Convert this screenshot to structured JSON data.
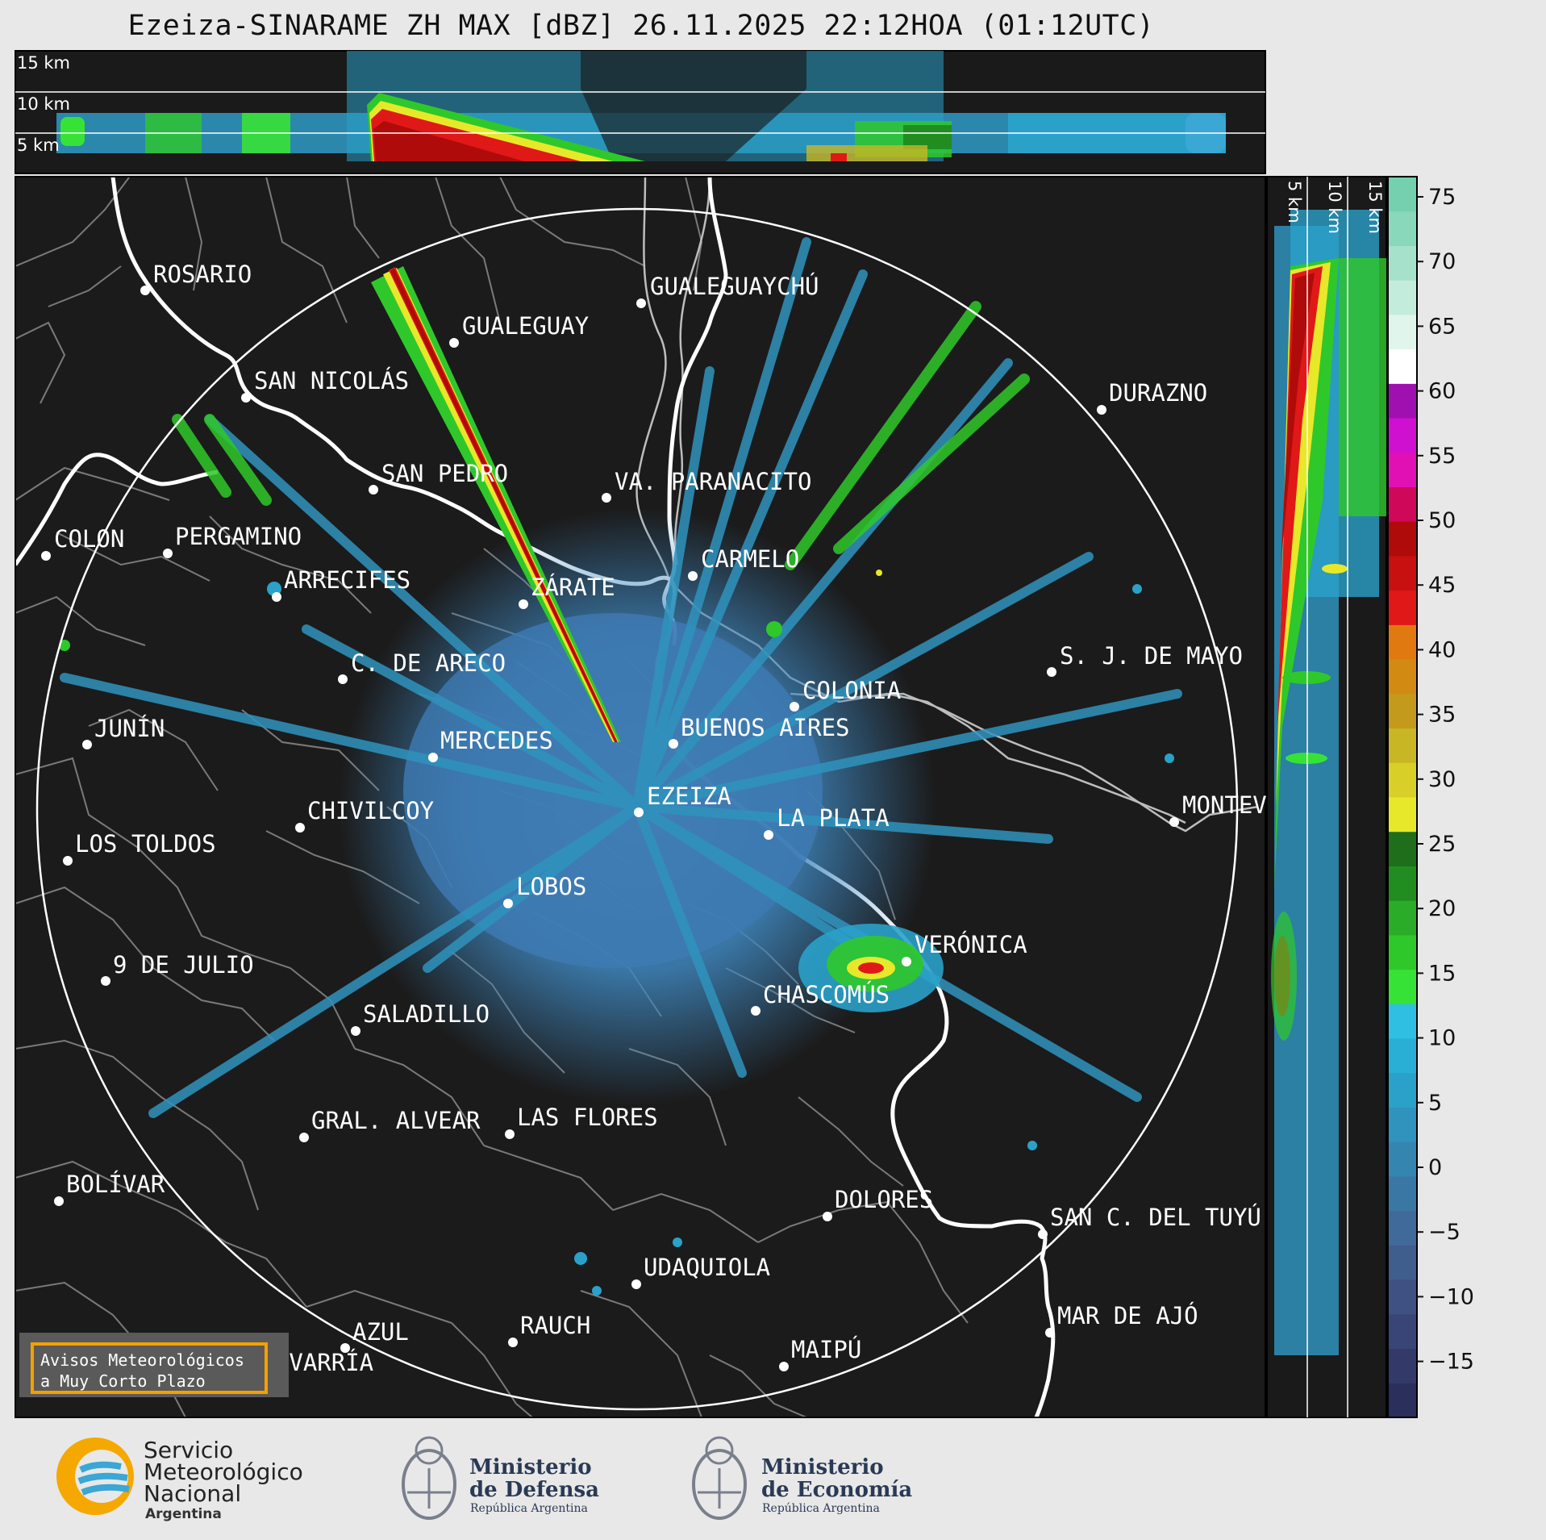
{
  "title": "Ezeiza-SINARAME ZH MAX [dBZ] 26.11.2025 22:12HOA (01:12UTC)",
  "top_panel": {
    "height_labels": [
      "15 km",
      "10 km",
      "5 km"
    ]
  },
  "side_panel": {
    "height_labels": [
      "5 km",
      "10 km",
      "15 km"
    ]
  },
  "colorbar": {
    "ticks": [
      "75",
      "70",
      "65",
      "60",
      "55",
      "50",
      "45",
      "40",
      "35",
      "30",
      "25",
      "20",
      "15",
      "10",
      "5",
      "0",
      "−5",
      "−10",
      "−15"
    ],
    "colors": [
      "#2b2f5c",
      "#333a6a",
      "#3a4577",
      "#3e5182",
      "#3f5d8d",
      "#3f6a99",
      "#3b77a5",
      "#3585b1",
      "#2f93bd",
      "#2aa1c9",
      "#29afd6",
      "#2ebfe3",
      "#37e236",
      "#2fc82a",
      "#2aac28",
      "#218d21",
      "#1f6e1c",
      "#e8e82a",
      "#d8d028",
      "#c9b624",
      "#c39a1c",
      "#d38a12",
      "#e07a10",
      "#e01818",
      "#c81010",
      "#b00b0b",
      "#d0085a",
      "#e010b4",
      "#d010d0",
      "#a010b0",
      "#ffffff",
      "#e0f5ec",
      "#c4ecdc",
      "#a6e2cb",
      "#8ad8bb",
      "#74d0ae"
    ]
  },
  "map": {
    "radar_site": "EZEIZA",
    "cities": [
      "ROSARIO",
      "GUALEGUAYCHÚ",
      "GUALEGUAY",
      "SAN NICOLÁS",
      "DURAZNO",
      "SAN PEDRO",
      "VA. PARANACITO",
      "COLON",
      "PERGAMINO",
      "CARMELO",
      "ARRECIFES",
      "ZÁRATE",
      "S. J. DE MAYO",
      "C. DE ARECO",
      "COLONIA",
      "JUNÍN",
      "MERCEDES",
      "BUENOS AIRES",
      "EZEIZA",
      "MONTEV",
      "CHIVILCOY",
      "LA PLATA",
      "LOS TOLDOS",
      "LOBOS",
      "VERÓNICA",
      "9 DE JULIO",
      "CHASCOMÚS",
      "SALADILLO",
      "GRAL. ALVEAR",
      "LAS FLORES",
      "BOLÍVAR",
      "DOLORES",
      "SAN C. DEL TUYÚ",
      "UDAQUIOLA",
      "MAR DE AJÓ",
      "AZUL",
      "RAUCH",
      "OLAVARRÍA",
      "MAIPÚ"
    ]
  },
  "avisos": {
    "line1": "Avisos Meteorológicos",
    "line2": "a Muy Corto Plazo"
  },
  "logos": {
    "smn": [
      "Servicio",
      "Meteorológico",
      "Nacional",
      "Argentina"
    ],
    "defensa": [
      "Ministerio",
      "de Defensa",
      "República Argentina"
    ],
    "economia": [
      "Ministerio",
      "de Economía",
      "República Argentina"
    ]
  }
}
